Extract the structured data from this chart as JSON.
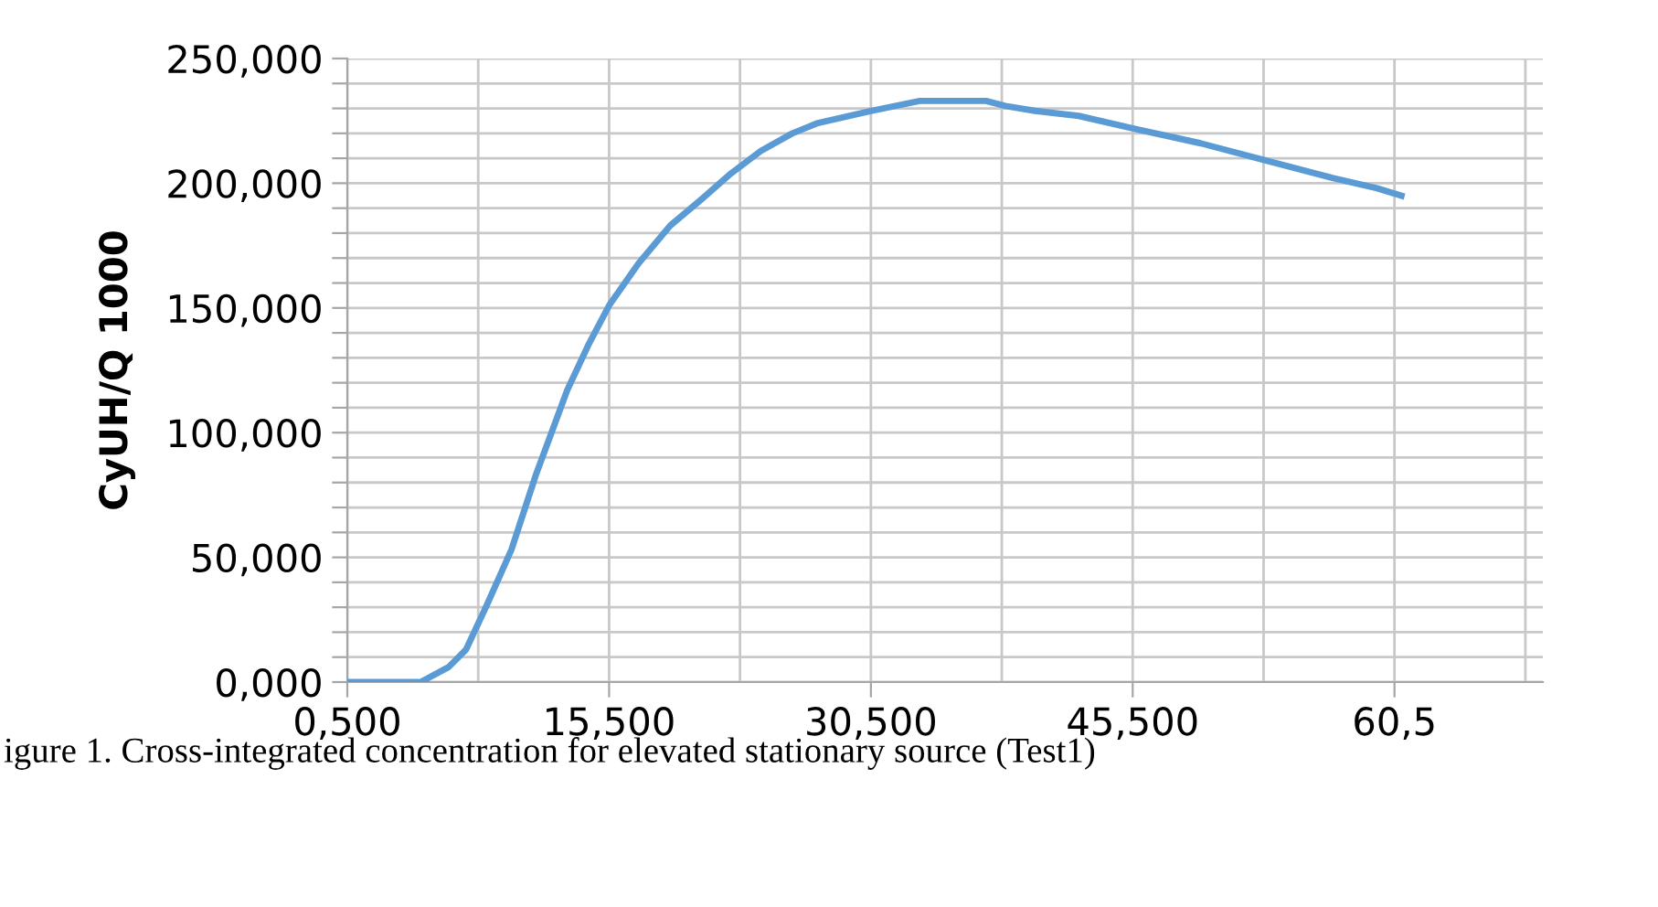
{
  "chart_data": {
    "type": "line",
    "ylabel": "CyUH/Q 1000",
    "annotations": [
      "igure 1. Cross-integrated concentration for elevated stationary source (Test1)"
    ],
    "series": [
      {
        "color": "#5b9bd5",
        "x": [
          0.5,
          2.0,
          3.5,
          4.7,
          6.3,
          7.3,
          8.5,
          9.9,
          11.3,
          13.1,
          14.3,
          15.5,
          17.2,
          19.0,
          20.7,
          22.5,
          24.2,
          26.0,
          27.4,
          30.5,
          33.3,
          37.1,
          38.2,
          39.9,
          42.4,
          45.5,
          49.4,
          53.2,
          57.0,
          59.5,
          60.9
        ],
        "values": [
          0,
          0,
          0,
          0,
          6,
          13,
          31,
          53,
          83,
          117,
          135,
          151,
          168,
          183,
          193,
          204,
          213,
          220,
          224,
          229,
          233,
          233,
          231,
          229,
          227,
          222,
          216,
          209,
          202,
          198,
          195
        ]
      }
    ],
    "xlim": [
      0.5,
      69
    ],
    "xticks": [
      {
        "value": 0.5,
        "label": "0,500"
      },
      {
        "value": 8,
        "label": null
      },
      {
        "value": 15.5,
        "label": "15,500"
      },
      {
        "value": 23,
        "label": null
      },
      {
        "value": 30.5,
        "label": "30,500"
      },
      {
        "value": 38,
        "label": null
      },
      {
        "value": 45.5,
        "label": "45,500"
      },
      {
        "value": 53,
        "label": null
      },
      {
        "value": 60.5,
        "label": "60,5"
      },
      {
        "value": 68,
        "label": null
      }
    ],
    "ylim": [
      0,
      250
    ],
    "yticks": [
      {
        "value": 0,
        "label": "0,000"
      },
      {
        "value": 10,
        "label": null
      },
      {
        "value": 20,
        "label": null
      },
      {
        "value": 30,
        "label": null
      },
      {
        "value": 40,
        "label": null
      },
      {
        "value": 50,
        "label": "50,000"
      },
      {
        "value": 60,
        "label": null
      },
      {
        "value": 70,
        "label": null
      },
      {
        "value": 80,
        "label": null
      },
      {
        "value": 90,
        "label": null
      },
      {
        "value": 100,
        "label": "100,000"
      },
      {
        "value": 110,
        "label": null
      },
      {
        "value": 120,
        "label": null
      },
      {
        "value": 130,
        "label": null
      },
      {
        "value": 140,
        "label": null
      },
      {
        "value": 150,
        "label": "150,000"
      },
      {
        "value": 160,
        "label": null
      },
      {
        "value": 170,
        "label": null
      },
      {
        "value": 180,
        "label": null
      },
      {
        "value": 190,
        "label": null
      },
      {
        "value": 200,
        "label": "200,000"
      },
      {
        "value": 210,
        "label": null
      },
      {
        "value": 220,
        "label": null
      },
      {
        "value": 230,
        "label": null
      },
      {
        "value": 240,
        "label": null
      },
      {
        "value": 250,
        "label": "250,000"
      }
    ],
    "grid": true,
    "marker": "none",
    "line_style": "solid"
  }
}
